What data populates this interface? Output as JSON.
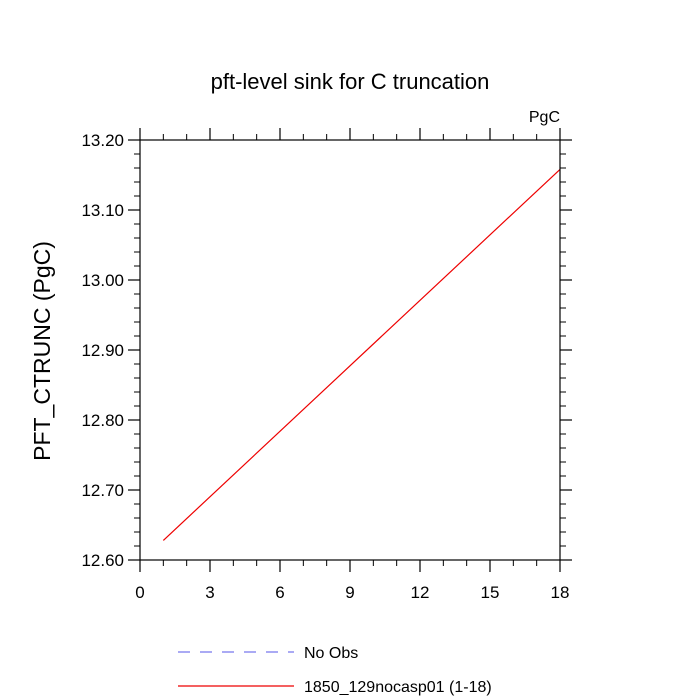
{
  "chart_data": {
    "type": "line",
    "title": "pft-level sink for C truncation",
    "units_label": "PgC",
    "xlabel": "",
    "ylabel": "PFT_CTRUNC  (PgC)",
    "xlim": [
      0,
      18
    ],
    "ylim": [
      12.6,
      13.2
    ],
    "x_ticks": [
      0,
      3,
      6,
      9,
      12,
      15,
      18
    ],
    "x_tick_labels": [
      "0",
      "3",
      "6",
      "9",
      "12",
      "15",
      "18"
    ],
    "y_ticks": [
      12.6,
      12.7,
      12.8,
      12.9,
      13.0,
      13.1,
      13.2
    ],
    "y_tick_labels": [
      "12.60",
      "12.70",
      "12.80",
      "12.90",
      "13.00",
      "13.10",
      "13.20"
    ],
    "grid": false,
    "legend_position": "bottom",
    "series": [
      {
        "name": "No Obs",
        "color": "#7777ee",
        "dash": true,
        "x": [],
        "y": []
      },
      {
        "name": "1850_129nocasp01 (1-18)",
        "color": "#ee0000",
        "dash": false,
        "x": [
          1,
          18
        ],
        "y": [
          12.628,
          13.158
        ]
      }
    ]
  }
}
